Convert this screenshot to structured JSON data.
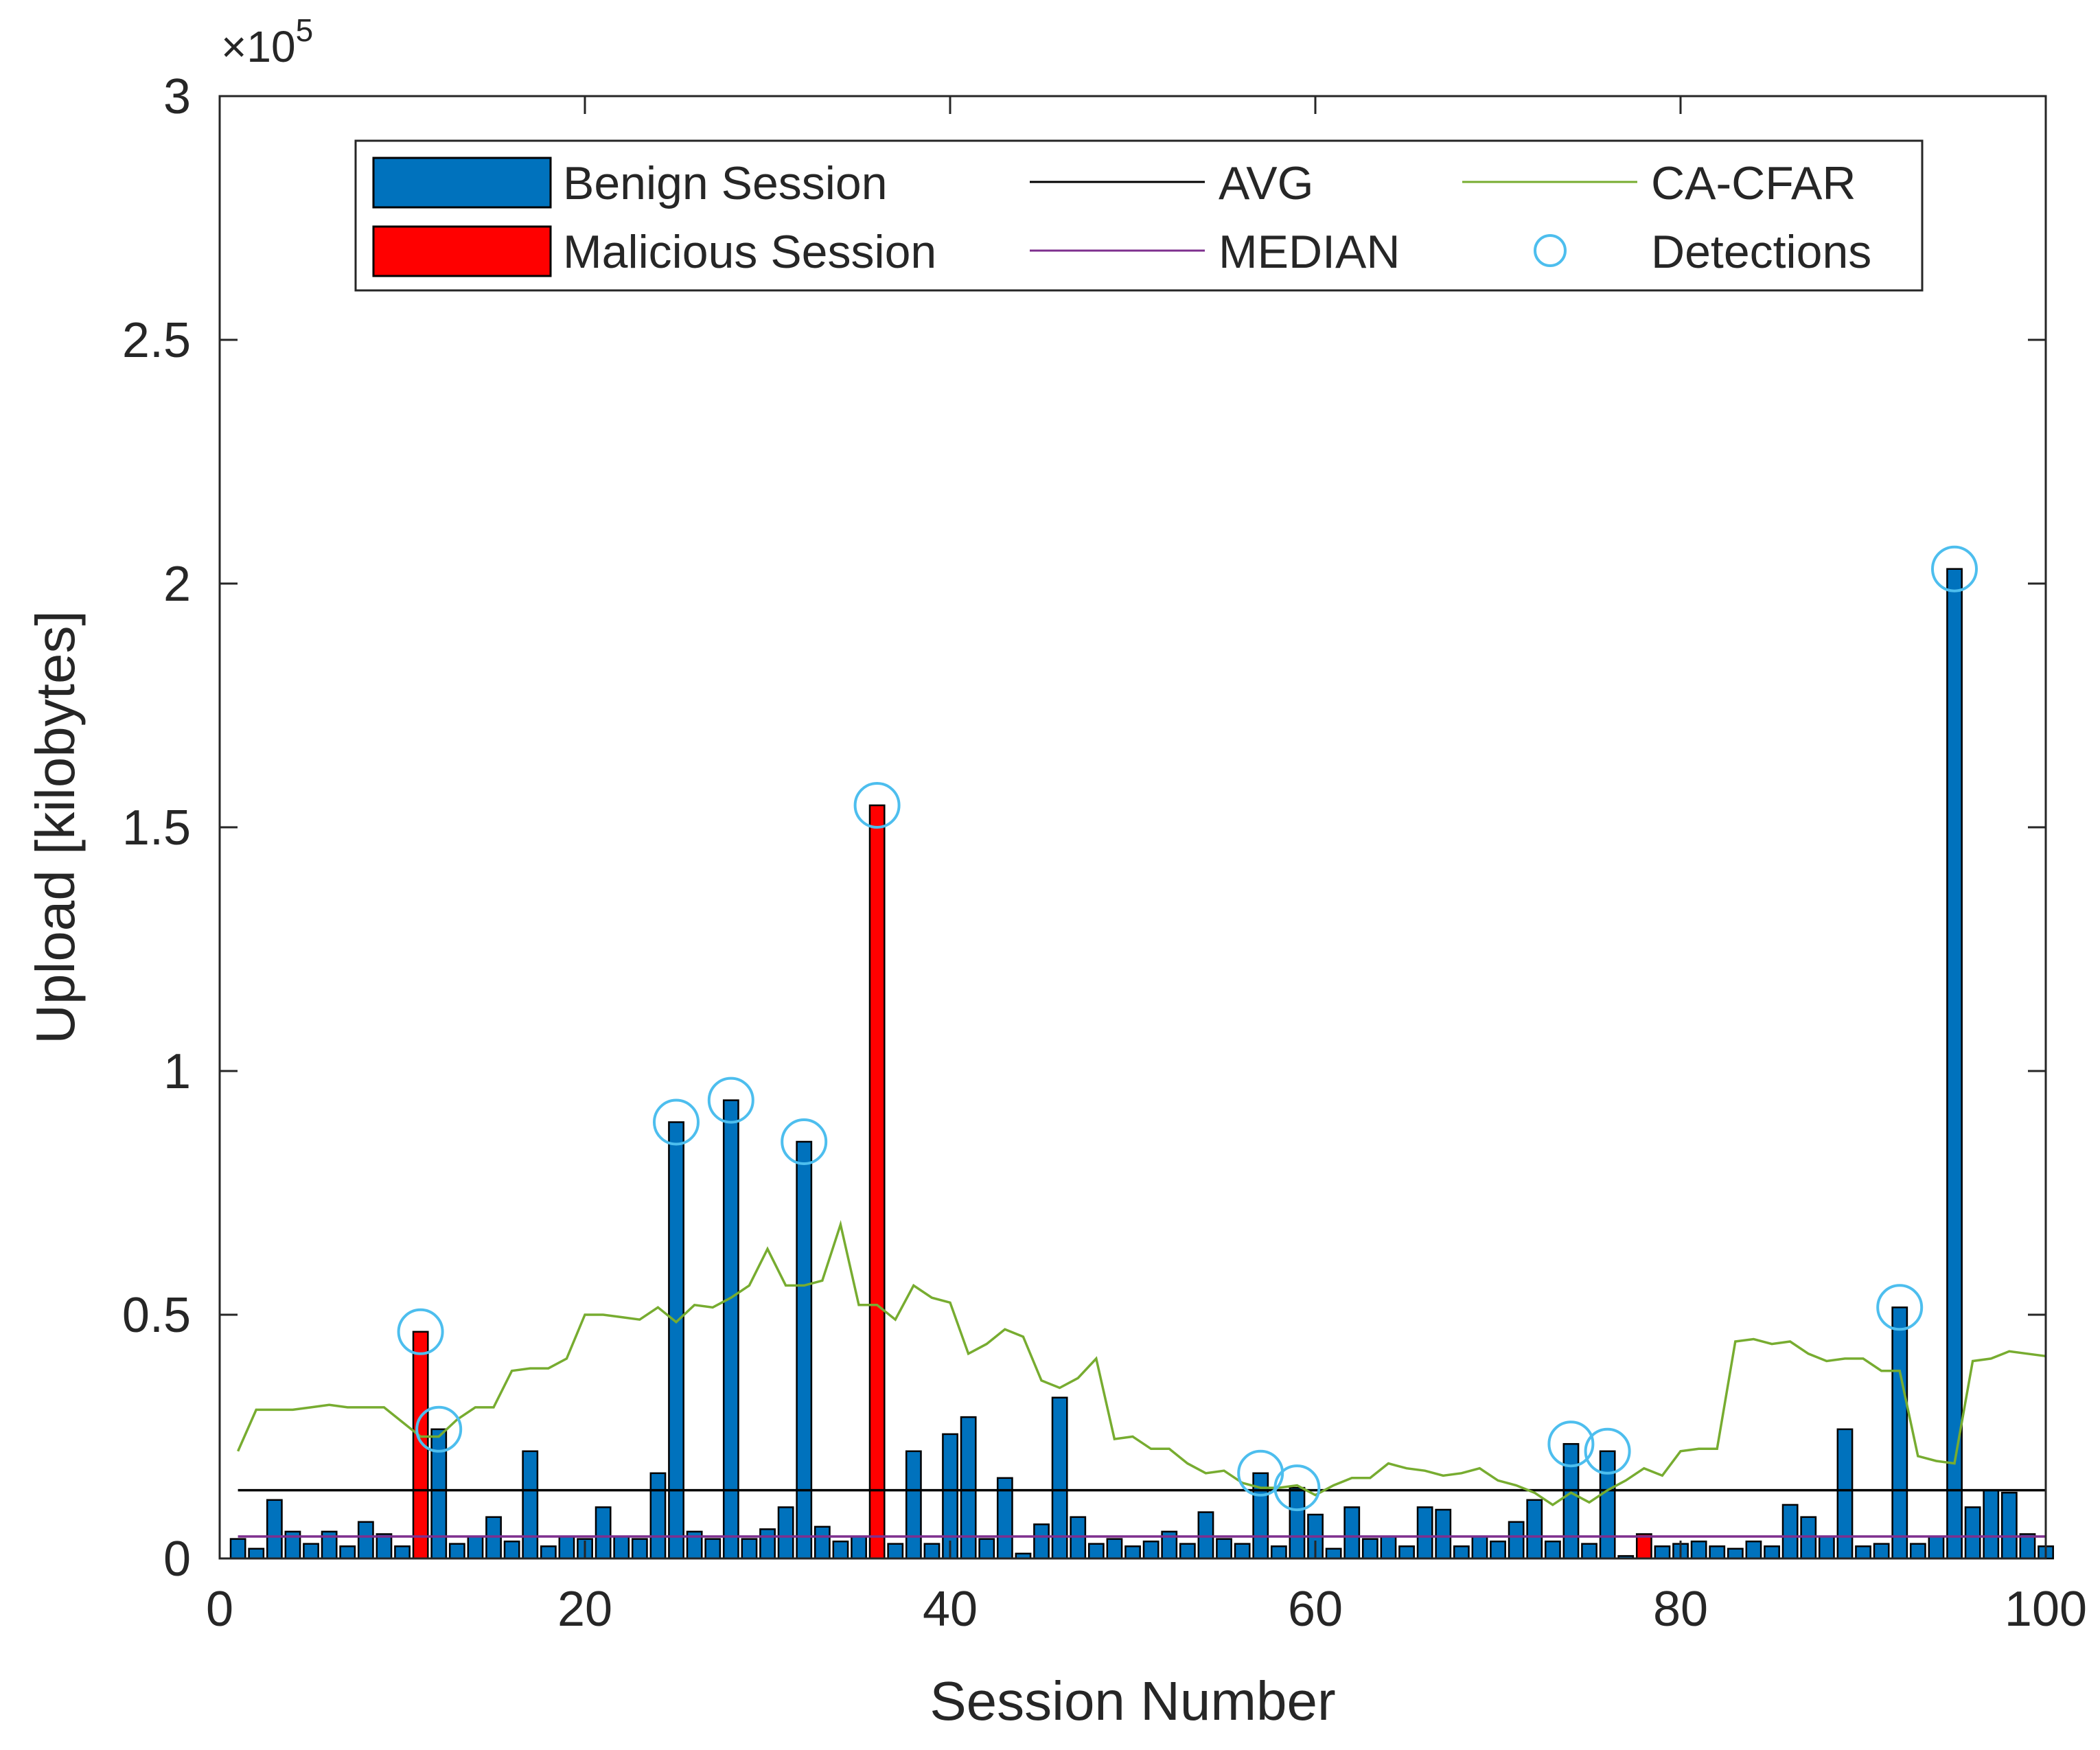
{
  "chart_data": {
    "type": "bar",
    "xlabel": "Session Number",
    "ylabel": "Upload [kilobytes]",
    "y_exponent_label": "×10",
    "y_exponent_power": "5",
    "xlim": [
      0,
      100
    ],
    "ylim": [
      0,
      3
    ],
    "y_scale_factor": 100000,
    "x_ticks": [
      0,
      20,
      40,
      60,
      80,
      100
    ],
    "x_tick_labels": [
      "0",
      "20",
      "40",
      "60",
      "80",
      "100"
    ],
    "y_ticks": [
      0,
      0.5,
      1,
      1.5,
      2,
      2.5,
      3
    ],
    "y_tick_labels": [
      "0",
      "0.5",
      "1",
      "1.5",
      "2",
      "2.5",
      "3"
    ],
    "legend_position": "top",
    "x": [
      1,
      2,
      3,
      4,
      5,
      6,
      7,
      8,
      9,
      10,
      11,
      12,
      13,
      14,
      15,
      16,
      17,
      18,
      19,
      20,
      21,
      22,
      23,
      24,
      25,
      26,
      27,
      28,
      29,
      30,
      31,
      32,
      33,
      34,
      35,
      36,
      37,
      38,
      39,
      40,
      41,
      42,
      43,
      44,
      45,
      46,
      47,
      48,
      49,
      50,
      51,
      52,
      53,
      54,
      55,
      56,
      57,
      58,
      59,
      60,
      61,
      62,
      63,
      64,
      65,
      66,
      67,
      68,
      69,
      70,
      71,
      72,
      73,
      74,
      75,
      76,
      77,
      78,
      79,
      80,
      81,
      82,
      83,
      84,
      85,
      86,
      87,
      88,
      89,
      90,
      91,
      92,
      93,
      94,
      95,
      96,
      97,
      98,
      99,
      100
    ],
    "upload": [
      0.04,
      0.02,
      0.12,
      0.055,
      0.03,
      0.055,
      0.025,
      0.075,
      0.05,
      0.025,
      0.465,
      0.265,
      0.03,
      0.045,
      0.085,
      0.035,
      0.22,
      0.025,
      0.045,
      0.04,
      0.105,
      0.045,
      0.04,
      0.175,
      0.895,
      0.055,
      0.04,
      0.94,
      0.04,
      0.06,
      0.105,
      0.855,
      0.065,
      0.035,
      0.045,
      1.545,
      0.03,
      0.22,
      0.03,
      0.255,
      0.29,
      0.04,
      0.165,
      0.01,
      0.07,
      0.33,
      0.085,
      0.03,
      0.04,
      0.025,
      0.035,
      0.055,
      0.03,
      0.095,
      0.04,
      0.03,
      0.175,
      0.025,
      0.145,
      0.09,
      0.02,
      0.105,
      0.04,
      0.045,
      0.025,
      0.105,
      0.1,
      0.025,
      0.045,
      0.035,
      0.075,
      0.12,
      0.035,
      0.235,
      0.03,
      0.22,
      0.005,
      0.05,
      0.025,
      0.03,
      0.035,
      0.025,
      0.02,
      0.035,
      0.025,
      0.11,
      0.085,
      0.045,
      0.265,
      0.025,
      0.03,
      0.515,
      0.03,
      0.045,
      2.03,
      0.105,
      0.14,
      0.135,
      0.05,
      0.025
    ],
    "series": [
      {
        "name": "Benign Session",
        "color": "#0072bd",
        "kind": "bar"
      },
      {
        "name": "Malicious Session",
        "color": "#ff0000",
        "kind": "bar",
        "sessions": [
          11,
          36,
          78
        ]
      },
      {
        "name": "AVG",
        "color": "#000000",
        "kind": "line",
        "value": 0.14
      },
      {
        "name": "MEDIAN",
        "color": "#7e2f8e",
        "kind": "line",
        "value": 0.045
      },
      {
        "name": "CA-CFAR",
        "color": "#77ac30",
        "kind": "line",
        "values": [
          0.22,
          0.305,
          0.305,
          0.305,
          0.31,
          0.315,
          0.31,
          0.31,
          0.31,
          0.28,
          0.25,
          0.25,
          0.285,
          0.31,
          0.31,
          0.385,
          0.39,
          0.39,
          0.41,
          0.5,
          0.5,
          0.495,
          0.49,
          0.515,
          0.485,
          0.52,
          0.515,
          0.535,
          0.56,
          0.635,
          0.56,
          0.56,
          0.57,
          0.685,
          0.52,
          0.52,
          0.49,
          0.56,
          0.535,
          0.525,
          0.42,
          0.44,
          0.47,
          0.455,
          0.365,
          0.35,
          0.37,
          0.41,
          0.245,
          0.25,
          0.225,
          0.225,
          0.195,
          0.175,
          0.18,
          0.155,
          0.145,
          0.145,
          0.15,
          0.13,
          0.15,
          0.165,
          0.165,
          0.195,
          0.185,
          0.18,
          0.17,
          0.175,
          0.185,
          0.16,
          0.15,
          0.135,
          0.11,
          0.135,
          0.115,
          0.14,
          0.16,
          0.185,
          0.17,
          0.22,
          0.225,
          0.225,
          0.445,
          0.45,
          0.44,
          0.445,
          0.42,
          0.405,
          0.41,
          0.41,
          0.385,
          0.385,
          0.21,
          0.2,
          0.195,
          0.405,
          0.41,
          0.425,
          0.42,
          0.415
        ]
      },
      {
        "name": "Detections",
        "color": "#4dbeee",
        "kind": "marker",
        "sessions": [
          11,
          12,
          25,
          28,
          32,
          36,
          57,
          59,
          74,
          76,
          92,
          95
        ]
      }
    ]
  }
}
